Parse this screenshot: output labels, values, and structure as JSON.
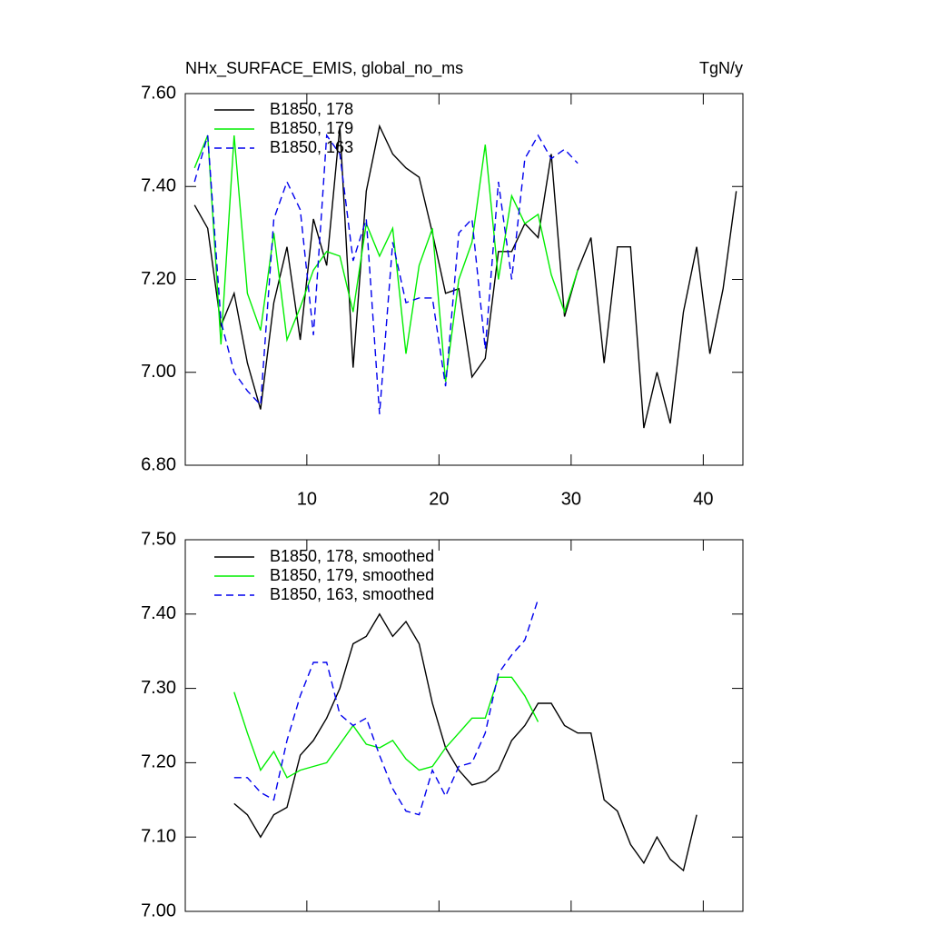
{
  "chart_data": [
    {
      "type": "line",
      "title": "NHx_SURFACE_EMIS, global_no_ms",
      "units": "TgN/y",
      "xlim": [
        0.8,
        43
      ],
      "xticks": [
        10,
        20,
        30,
        40
      ],
      "ylim": [
        6.8,
        7.6
      ],
      "yticks": [
        {
          "value": 6.8,
          "label": "6.80"
        },
        {
          "value": 7.0,
          "label": "7.00"
        },
        {
          "value": 7.2,
          "label": "7.20"
        },
        {
          "value": 7.4,
          "label": "7.40"
        },
        {
          "value": 7.6,
          "label": "7.60"
        }
      ],
      "series": [
        {
          "name": "B1850, 178",
          "color": "#000000",
          "dashed": false,
          "x": [
            1.5,
            2.5,
            3.5,
            4.5,
            5.5,
            6.5,
            7.5,
            8.5,
            9.5,
            10.5,
            11.5,
            12.5,
            13.5,
            14.5,
            15.5,
            16.5,
            17.5,
            18.5,
            19.5,
            20.5,
            21.5,
            22.5,
            23.5,
            24.5,
            25.5,
            26.5,
            27.5,
            28.5,
            29.5,
            30.5,
            31.5,
            32.5,
            33.5,
            34.5,
            35.5,
            36.5,
            37.5,
            38.5,
            39.5,
            40.5,
            41.5,
            42.5
          ],
          "values": [
            7.36,
            7.31,
            7.1,
            7.17,
            7.02,
            6.92,
            7.15,
            7.27,
            7.07,
            7.33,
            7.23,
            7.53,
            7.01,
            7.39,
            7.53,
            7.47,
            7.44,
            7.42,
            7.3,
            7.17,
            7.18,
            6.99,
            7.03,
            7.26,
            7.26,
            7.32,
            7.29,
            7.47,
            7.12,
            7.22,
            7.29,
            7.02,
            7.27,
            7.27,
            6.88,
            7.0,
            6.89,
            7.13,
            7.27,
            7.04,
            7.18,
            7.39
          ]
        },
        {
          "name": "B1850, 179",
          "color": "#00ee00",
          "dashed": false,
          "x": [
            1.5,
            2.5,
            3.5,
            4.5,
            5.5,
            6.5,
            7.5,
            8.5,
            9.5,
            10.5,
            11.5,
            12.5,
            13.5,
            14.5,
            15.5,
            16.5,
            17.5,
            18.5,
            19.5,
            20.5,
            21.5,
            22.5,
            23.5,
            24.5,
            25.5,
            26.5,
            27.5,
            28.5,
            29.5,
            30.5
          ],
          "values": [
            7.44,
            7.51,
            7.06,
            7.51,
            7.17,
            7.09,
            7.3,
            7.07,
            7.14,
            7.22,
            7.26,
            7.25,
            7.13,
            7.32,
            7.25,
            7.31,
            7.04,
            7.23,
            7.31,
            6.98,
            7.2,
            7.28,
            7.49,
            7.2,
            7.38,
            7.32,
            7.34,
            7.21,
            7.13,
            7.22
          ]
        },
        {
          "name": "B1850, 163",
          "color": "#0000ee",
          "dashed": true,
          "x": [
            1.5,
            2.5,
            3.5,
            4.5,
            5.5,
            6.5,
            7.5,
            8.5,
            9.5,
            10.5,
            11.5,
            12.5,
            13.5,
            14.5,
            15.5,
            16.5,
            17.5,
            18.5,
            19.5,
            20.5,
            21.5,
            22.5,
            23.5,
            24.5,
            25.5,
            26.5,
            27.5,
            28.5,
            29.5,
            30.5
          ],
          "values": [
            7.41,
            7.51,
            7.11,
            7.0,
            6.96,
            6.93,
            7.33,
            7.41,
            7.35,
            7.08,
            7.51,
            7.47,
            7.24,
            7.33,
            6.91,
            7.28,
            7.15,
            7.16,
            7.16,
            6.97,
            7.3,
            7.33,
            7.05,
            7.41,
            7.2,
            7.46,
            7.51,
            7.46,
            7.48,
            7.45
          ]
        }
      ]
    },
    {
      "type": "line",
      "xlim": [
        0.8,
        43
      ],
      "xticks": [
        10,
        20,
        30,
        40
      ],
      "ylim": [
        7.0,
        7.5
      ],
      "yticks": [
        {
          "value": 7.0,
          "label": "7.00"
        },
        {
          "value": 7.1,
          "label": "7.10"
        },
        {
          "value": 7.2,
          "label": "7.20"
        },
        {
          "value": 7.3,
          "label": "7.30"
        },
        {
          "value": 7.4,
          "label": "7.40"
        },
        {
          "value": 7.5,
          "label": "7.50"
        }
      ],
      "series": [
        {
          "name": "B1850, 178, smoothed",
          "color": "#000000",
          "dashed": false,
          "x": [
            4.5,
            5.5,
            6.5,
            7.5,
            8.5,
            9.5,
            10.5,
            11.5,
            12.5,
            13.5,
            14.5,
            15.5,
            16.5,
            17.5,
            18.5,
            19.5,
            20.5,
            21.5,
            22.5,
            23.5,
            24.5,
            25.5,
            26.5,
            27.5,
            28.5,
            29.5,
            30.5,
            31.5,
            32.5,
            33.5,
            34.5,
            35.5,
            36.5,
            37.5,
            38.5,
            39.5
          ],
          "values": [
            7.145,
            7.13,
            7.1,
            7.13,
            7.14,
            7.21,
            7.23,
            7.26,
            7.3,
            7.36,
            7.37,
            7.4,
            7.37,
            7.39,
            7.36,
            7.28,
            7.22,
            7.19,
            7.17,
            7.175,
            7.19,
            7.23,
            7.25,
            7.28,
            7.28,
            7.25,
            7.24,
            7.24,
            7.15,
            7.135,
            7.09,
            7.065,
            7.1,
            7.07,
            7.055,
            7.13
          ]
        },
        {
          "name": "B1850, 179, smoothed",
          "color": "#00ee00",
          "dashed": false,
          "x": [
            4.5,
            5.5,
            6.5,
            7.5,
            8.5,
            9.5,
            10.5,
            11.5,
            12.5,
            13.5,
            14.5,
            15.5,
            16.5,
            17.5,
            18.5,
            19.5,
            20.5,
            21.5,
            22.5,
            23.5,
            24.5,
            25.5,
            26.5,
            27.5
          ],
          "values": [
            7.295,
            7.24,
            7.19,
            7.215,
            7.18,
            7.19,
            7.195,
            7.2,
            7.225,
            7.25,
            7.225,
            7.22,
            7.23,
            7.205,
            7.19,
            7.195,
            7.22,
            7.24,
            7.26,
            7.26,
            7.315,
            7.315,
            7.29,
            7.255
          ]
        },
        {
          "name": "B1850, 163, smoothed",
          "color": "#0000ee",
          "dashed": true,
          "x": [
            4.5,
            5.5,
            6.5,
            7.5,
            8.5,
            9.5,
            10.5,
            11.5,
            12.5,
            13.5,
            14.5,
            15.5,
            16.5,
            17.5,
            18.5,
            19.5,
            20.5,
            21.5,
            22.5,
            23.5,
            24.5,
            25.5,
            26.5,
            27.5
          ],
          "values": [
            7.18,
            7.18,
            7.16,
            7.15,
            7.23,
            7.29,
            7.335,
            7.335,
            7.265,
            7.25,
            7.26,
            7.21,
            7.165,
            7.135,
            7.13,
            7.19,
            7.155,
            7.195,
            7.2,
            7.24,
            7.32,
            7.345,
            7.365,
            7.42
          ]
        }
      ]
    }
  ]
}
